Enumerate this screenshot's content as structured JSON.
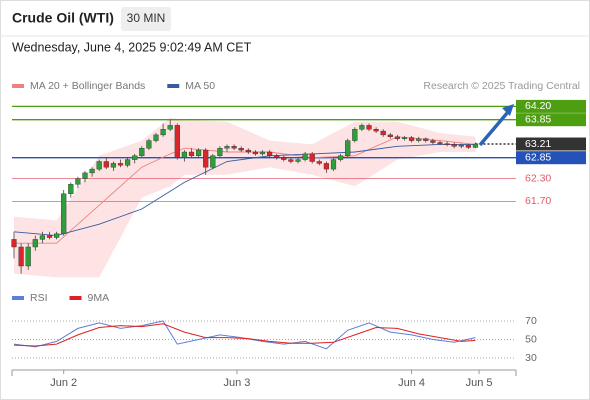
{
  "header": {
    "title": "Crude Oil (WTI)",
    "interval": "30 MIN",
    "timestamp": "Wednesday, June 4, 2025 9:02:49 AM CET",
    "credit": "Research © 2025 Trading Central"
  },
  "chart_data": [
    {
      "type": "candlestick",
      "xlim": [
        -0.3,
        67.5
      ],
      "ylim": [
        59.5,
        64.5
      ],
      "up_color": "#2e9e3a",
      "down_color": "#d9262b",
      "ohlc": [
        [
          60.7,
          60.9,
          60.2,
          60.5
        ],
        [
          60.5,
          60.6,
          59.8,
          60.0
        ],
        [
          60.0,
          60.6,
          59.9,
          60.5
        ],
        [
          60.5,
          60.8,
          60.4,
          60.7
        ],
        [
          60.7,
          60.9,
          60.6,
          60.8
        ],
        [
          60.8,
          60.9,
          60.7,
          60.75
        ],
        [
          60.75,
          60.9,
          60.7,
          60.85
        ],
        [
          60.85,
          62.0,
          60.8,
          61.9
        ],
        [
          61.9,
          62.2,
          61.8,
          62.15
        ],
        [
          62.15,
          62.35,
          62.05,
          62.3
        ],
        [
          62.3,
          62.5,
          62.2,
          62.45
        ],
        [
          62.45,
          62.6,
          62.35,
          62.55
        ],
        [
          62.55,
          62.8,
          62.5,
          62.75
        ],
        [
          62.75,
          62.85,
          62.55,
          62.6
        ],
        [
          62.6,
          62.75,
          62.5,
          62.7
        ],
        [
          62.7,
          62.8,
          62.6,
          62.65
        ],
        [
          62.65,
          62.85,
          62.6,
          62.8
        ],
        [
          62.8,
          62.95,
          62.7,
          62.9
        ],
        [
          62.9,
          63.15,
          62.85,
          63.1
        ],
        [
          63.1,
          63.35,
          63.05,
          63.3
        ],
        [
          63.3,
          63.5,
          63.25,
          63.45
        ],
        [
          63.45,
          63.75,
          63.4,
          63.6
        ],
        [
          63.6,
          63.85,
          63.55,
          63.7
        ],
        [
          63.7,
          63.75,
          62.8,
          62.85
        ],
        [
          62.85,
          63.05,
          62.75,
          63.0
        ],
        [
          63.0,
          63.1,
          62.85,
          62.9
        ],
        [
          62.9,
          63.1,
          62.85,
          63.05
        ],
        [
          63.05,
          63.1,
          62.4,
          62.6
        ],
        [
          62.6,
          62.95,
          62.55,
          62.9
        ],
        [
          62.9,
          63.15,
          62.85,
          63.1
        ],
        [
          63.1,
          63.2,
          63.0,
          63.15
        ],
        [
          63.15,
          63.2,
          63.05,
          63.1
        ],
        [
          63.1,
          63.15,
          63.0,
          63.05
        ],
        [
          63.05,
          63.1,
          62.95,
          63.0
        ],
        [
          63.0,
          63.05,
          62.9,
          62.95
        ],
        [
          62.95,
          63.05,
          62.9,
          63.0
        ],
        [
          63.0,
          63.05,
          62.85,
          62.9
        ],
        [
          62.9,
          62.95,
          62.8,
          62.85
        ],
        [
          62.85,
          62.9,
          62.75,
          62.8
        ],
        [
          62.8,
          62.85,
          62.7,
          62.75
        ],
        [
          62.75,
          62.85,
          62.7,
          62.8
        ],
        [
          62.8,
          63.0,
          62.75,
          62.95
        ],
        [
          62.95,
          63.0,
          62.7,
          62.75
        ],
        [
          62.75,
          62.8,
          62.65,
          62.7
        ],
        [
          62.7,
          62.75,
          62.45,
          62.55
        ],
        [
          62.55,
          62.85,
          62.5,
          62.8
        ],
        [
          62.8,
          62.95,
          62.75,
          62.9
        ],
        [
          62.9,
          63.35,
          62.85,
          63.3
        ],
        [
          63.3,
          63.65,
          63.25,
          63.6
        ],
        [
          63.6,
          63.75,
          63.55,
          63.7
        ],
        [
          63.7,
          63.75,
          63.55,
          63.6
        ],
        [
          63.6,
          63.65,
          63.5,
          63.55
        ],
        [
          63.55,
          63.6,
          63.4,
          63.45
        ],
        [
          63.45,
          63.5,
          63.35,
          63.4
        ],
        [
          63.4,
          63.45,
          63.3,
          63.35
        ],
        [
          63.35,
          63.42,
          63.3,
          63.38
        ],
        [
          63.38,
          63.42,
          63.25,
          63.3
        ],
        [
          63.3,
          63.4,
          63.25,
          63.35
        ],
        [
          63.35,
          63.38,
          63.25,
          63.3
        ],
        [
          63.3,
          63.35,
          63.2,
          63.25
        ],
        [
          63.25,
          63.3,
          63.18,
          63.22
        ],
        [
          63.22,
          63.28,
          63.15,
          63.2
        ],
        [
          63.2,
          63.25,
          63.1,
          63.15
        ],
        [
          63.15,
          63.22,
          63.1,
          63.18
        ],
        [
          63.18,
          63.2,
          63.08,
          63.12
        ],
        [
          63.12,
          63.25,
          63.1,
          63.21
        ]
      ],
      "series": [
        {
          "name": "MA 20 + Bollinger Bands",
          "color": "#f08080",
          "band_color": "#fde3e3",
          "x": [
            0,
            6,
            12,
            18,
            22,
            24,
            30,
            36,
            42,
            48,
            54,
            60,
            65
          ],
          "values": [
            60.6,
            60.6,
            61.6,
            62.6,
            62.95,
            63.1,
            63.0,
            63.0,
            62.85,
            62.9,
            63.4,
            63.3,
            63.2
          ],
          "upper": [
            61.3,
            61.2,
            62.9,
            63.3,
            63.9,
            63.85,
            63.8,
            63.3,
            63.2,
            63.8,
            63.8,
            63.5,
            63.4
          ],
          "lower": [
            59.8,
            59.7,
            59.7,
            61.8,
            62.1,
            62.4,
            62.4,
            62.6,
            62.4,
            62.1,
            62.8,
            63.0,
            63.0
          ]
        },
        {
          "name": "MA 50",
          "color": "#3a5a9e",
          "x": [
            0,
            6,
            12,
            18,
            24,
            30,
            36,
            42,
            48,
            54,
            60,
            65
          ],
          "values": [
            60.9,
            60.8,
            61.1,
            61.5,
            62.2,
            62.75,
            62.9,
            62.95,
            63.0,
            63.15,
            63.2,
            63.2
          ]
        }
      ],
      "levels": [
        {
          "value": 64.2,
          "label": "64.20",
          "color": "#4e9e12",
          "style": "box"
        },
        {
          "value": 63.85,
          "label": "63.85",
          "color": "#4e9e12",
          "style": "box"
        },
        {
          "value": 63.21,
          "label": "63.21",
          "color": "#333333",
          "style": "dotted"
        },
        {
          "value": 62.85,
          "label": "62.85",
          "color": "#2452b8",
          "style": "box"
        },
        {
          "value": 62.3,
          "label": "62.30",
          "color": "#e05a6a",
          "style": "text"
        },
        {
          "value": 61.7,
          "label": "61.70",
          "color": "#e05a6a",
          "style": "text"
        }
      ]
    },
    {
      "type": "line",
      "xlim": [
        -0.3,
        67.5
      ],
      "ylim": [
        20,
        80
      ],
      "yticks": [
        30,
        50,
        70
      ],
      "xticks": [
        {
          "value": 7,
          "label": "Jun 2"
        },
        {
          "value": 31.4,
          "label": "Jun 3"
        },
        {
          "value": 56,
          "label": "Jun 4"
        },
        {
          "value": 65.5,
          "label": "Jun 5"
        }
      ],
      "series": [
        {
          "name": "RSI",
          "color": "#5b7fd6",
          "x": [
            0,
            3,
            6,
            9,
            12,
            15,
            18,
            21,
            23,
            26,
            29,
            32,
            35,
            38,
            41,
            44,
            47,
            50,
            53,
            56,
            59,
            62,
            65
          ],
          "values": [
            45,
            42,
            48,
            62,
            68,
            62,
            65,
            70,
            45,
            50,
            55,
            52,
            48,
            45,
            48,
            40,
            60,
            68,
            58,
            55,
            50,
            47,
            52
          ]
        },
        {
          "name": "9MA",
          "color": "#e02020",
          "x": [
            0,
            3,
            6,
            9,
            12,
            15,
            18,
            21,
            24,
            27,
            30,
            33,
            36,
            39,
            42,
            45,
            48,
            51,
            54,
            57,
            60,
            63,
            65
          ],
          "values": [
            44,
            43,
            45,
            55,
            63,
            65,
            64,
            67,
            58,
            52,
            52,
            51,
            48,
            46,
            46,
            47,
            55,
            63,
            62,
            56,
            52,
            48,
            49
          ]
        }
      ]
    }
  ]
}
